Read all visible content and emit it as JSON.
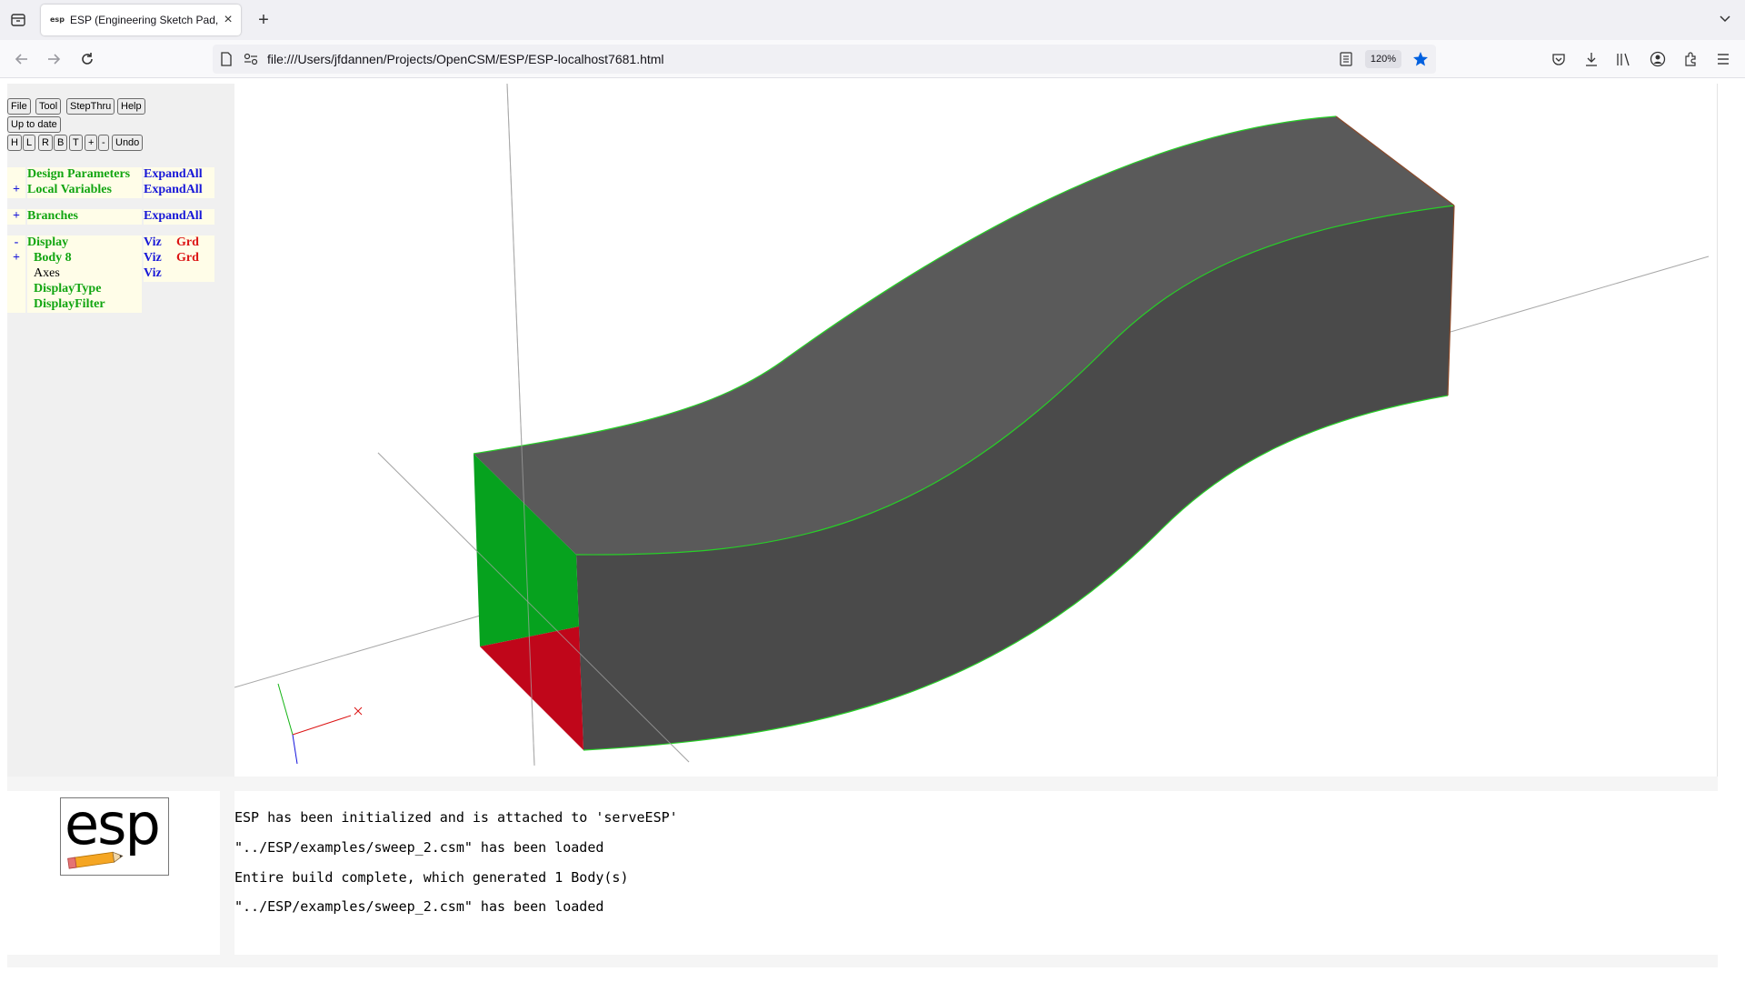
{
  "browser": {
    "tab_title": "ESP (Engineering Sketch Pad, V",
    "favicon_text": "esp",
    "url": "file:///Users/jfdannen/Projects/OpenCSM/ESP/ESP-localhost7681.html",
    "zoom": "120%"
  },
  "toolbar": {
    "row1": [
      "File",
      "Tool",
      "StepThru",
      "Help"
    ],
    "status": "Up to date",
    "row3": [
      "H",
      "L",
      "R",
      "B",
      "T",
      "+",
      "-",
      "Undo"
    ]
  },
  "tree": {
    "design_parameters": {
      "prefix": "",
      "label": "Design Parameters",
      "action": "ExpandAll"
    },
    "local_variables": {
      "prefix": "+",
      "label": "Local Variables",
      "action": "ExpandAll"
    },
    "branches": {
      "prefix": "+",
      "label": "Branches",
      "action": "ExpandAll"
    },
    "display": {
      "prefix": "-",
      "label": "Display",
      "viz": "Viz",
      "grd": "Grd"
    },
    "body8": {
      "prefix": "+",
      "label": "Body 8",
      "viz": "Viz",
      "grd": "Grd"
    },
    "axes": {
      "label": "Axes",
      "viz": "Viz"
    },
    "display_type": {
      "label": "DisplayType"
    },
    "display_filter": {
      "label": "DisplayFilter"
    }
  },
  "logo": {
    "text": "esp"
  },
  "messages": [
    "ESP has been initialized and is attached to 'serveESP'",
    "\"../ESP/examples/sweep_2.csm\" has been loaded",
    "Entire build complete, which generated 1 Body(s)",
    "\"../ESP/examples/sweep_2.csm\" has been loaded"
  ],
  "colors": {
    "face_top": "#5a5a5a",
    "face_side": "#4a4a4a",
    "face_green": "#06a21e",
    "face_red": "#c0061a",
    "edge": "#27d027"
  }
}
